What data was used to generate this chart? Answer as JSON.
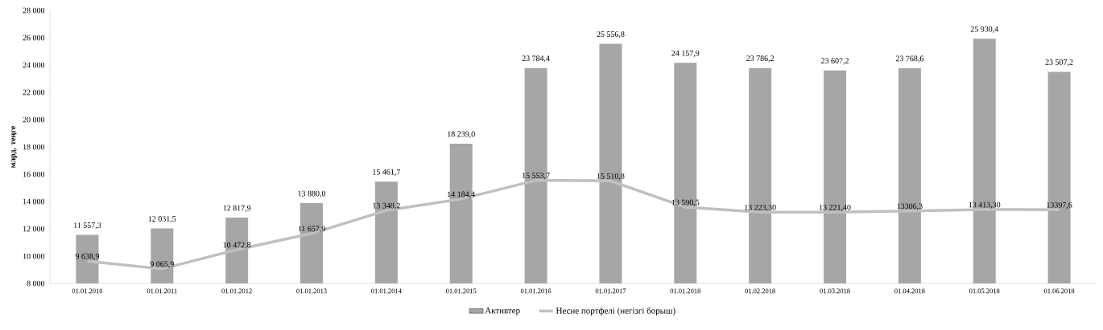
{
  "chart_data": {
    "type": "bar",
    "ylabel": "млрд. теңге",
    "categories": [
      "01.01.2010",
      "01.01.2011",
      "01.01.2012",
      "01.01.2013",
      "01.01.2014",
      "01.01.2015",
      "01.01.2016",
      "01.01.2017",
      "01.01.2018",
      "01.02.2018",
      "01.03.2018",
      "01.04.2018",
      "01.05.2018",
      "01.06.2018"
    ],
    "series": [
      {
        "name": "Активтер",
        "color": "#a6a6a6",
        "values": [
          11557.3,
          12031.5,
          12817.9,
          13880.0,
          15461.7,
          18239.0,
          23784.4,
          25556.8,
          24157.9,
          23786.2,
          23607.2,
          23768.6,
          25930.4,
          23507.2
        ],
        "value_labels": [
          "11 557,3",
          "12 031,5",
          "12 817,9",
          "13 880,0",
          "15 461,7",
          "18 239,0",
          "23 784,4",
          "25 556,8",
          "24 157,9",
          "23 786,2",
          "23 607,2",
          "23 768,6",
          "25 930,4",
          "23 507,2"
        ]
      },
      {
        "name": "Несие портфелі (негізгі борыш)",
        "type": "line",
        "color": "#c0c0c0",
        "values": [
          9638.9,
          9065.9,
          10472.8,
          11657.9,
          13348.2,
          14184.4,
          15553.7,
          15510.8,
          13590.5,
          13223.3,
          13221.4,
          13306.3,
          13413.3,
          13397.6
        ],
        "value_labels": [
          "9 638,9",
          "9 065,9",
          "10 472,8",
          "11 657,9",
          "13 348,2",
          "14 184,4",
          "15 553,7",
          "15 510,8",
          "13 590,5",
          "13 223,30",
          "13 221,40",
          "13306,3",
          "13 413,30",
          "13397,6"
        ]
      }
    ],
    "ylim": [
      8000,
      28000
    ],
    "yticks": [
      {
        "value": 8000,
        "label": "8 000"
      },
      {
        "value": 10000,
        "label": "10 000"
      },
      {
        "value": 12000,
        "label": "12 000"
      },
      {
        "value": 14000,
        "label": "14 000"
      },
      {
        "value": 16000,
        "label": "16 000"
      },
      {
        "value": 18000,
        "label": "18 000"
      },
      {
        "value": 20000,
        "label": "20 000"
      },
      {
        "value": 22000,
        "label": "22 000"
      },
      {
        "value": 24000,
        "label": "24 000"
      },
      {
        "value": 26000,
        "label": "26 000"
      },
      {
        "value": 28000,
        "label": "28 000"
      }
    ],
    "legend": "bottom",
    "marker": "none",
    "line_style": "solid"
  }
}
